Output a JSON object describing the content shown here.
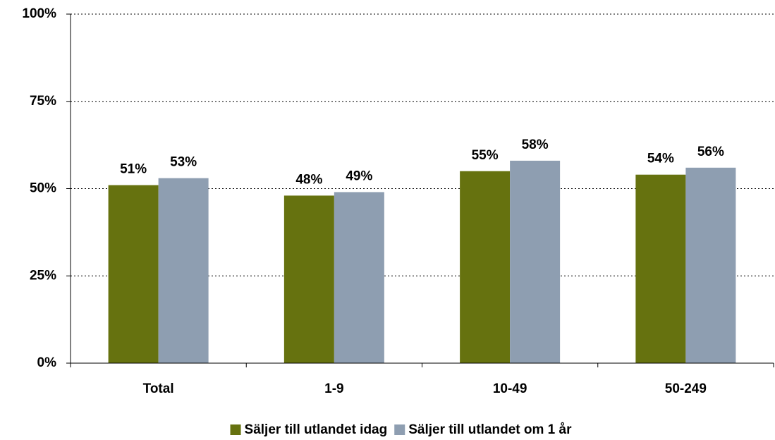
{
  "chart_data": {
    "type": "bar",
    "categories": [
      "Total",
      "1-9",
      "10-49",
      "50-249"
    ],
    "series": [
      {
        "name": "Säljer till utlandet idag",
        "color": "#66720f",
        "values": [
          51,
          48,
          55,
          54
        ],
        "value_labels": [
          "51%",
          "48%",
          "55%",
          "54%"
        ]
      },
      {
        "name": "Säljer till utlandet om 1 år",
        "color": "#8e9eb1",
        "values": [
          53,
          49,
          58,
          56
        ],
        "value_labels": [
          "53%",
          "49%",
          "58%",
          "56%"
        ]
      }
    ],
    "ylim": [
      0,
      100
    ],
    "yticks": [
      {
        "value": 0,
        "label": "0%"
      },
      {
        "value": 25,
        "label": "25%"
      },
      {
        "value": 50,
        "label": "50%"
      },
      {
        "value": 75,
        "label": "75%"
      },
      {
        "value": 100,
        "label": "100%"
      }
    ],
    "grid": true,
    "legend": "bottom"
  }
}
